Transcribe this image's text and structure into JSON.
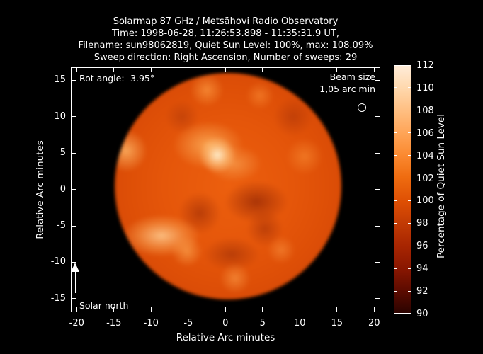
{
  "header": {
    "lines": [
      "Solarmap 87 GHz / Metsähovi Radio Observatory",
      "Time: 1998-06-28, 11:26:53.898 - 11:35:31.9 UT,",
      "Filename: sun98062819, Quiet Sun Level: 100%, max: 108.09%",
      "Sweep direction: Right Ascension, Number of sweeps: 29"
    ]
  },
  "plot": {
    "annotations": {
      "rot_angle": "Rot angle: -3.95°",
      "beam_size_line1": "Beam size",
      "beam_size_line2": "1,05 arc min",
      "solar_north": "Solar north"
    },
    "x_axis": {
      "label": "Relative Arc minutes"
    },
    "y_axis": {
      "label": "Relative Arc minutes"
    }
  },
  "colorbar": {
    "label": "Percentage of Quiet Sun Level"
  },
  "chart_data": {
    "type": "heatmap",
    "title": "Solarmap 87 GHz / Metsähovi Radio Observatory",
    "subtitle_lines": [
      "Time: 1998-06-28, 11:26:53.898 - 11:35:31.9 UT,",
      "Filename: sun98062819, Quiet Sun Level: 100%, max: 108.09%",
      "Sweep direction: Right Ascension, Number of sweeps: 29"
    ],
    "xlabel": "Relative Arc minutes",
    "ylabel": "Relative Arc minutes",
    "xlim": [
      -20.8,
      20.9
    ],
    "ylim": [
      -16.8,
      16.8
    ],
    "x_ticks": [
      -20,
      -15,
      -10,
      -5,
      0,
      5,
      10,
      15,
      20
    ],
    "y_ticks": [
      15,
      10,
      5,
      0,
      -5,
      -10,
      -15
    ],
    "grid": false,
    "background_color": "#000000",
    "colorbar": {
      "label": "Percentage of Quiet Sun Level",
      "range": [
        90,
        112
      ],
      "ticks": [
        112,
        110,
        108,
        106,
        104,
        102,
        100,
        98,
        96,
        94,
        92,
        90
      ],
      "colors_low_to_high": [
        "#2b0300",
        "#8a1701",
        "#c13a04",
        "#de4f04",
        "#fb8a31",
        "#ffbf82",
        "#ffecd8"
      ]
    },
    "solar_disk": {
      "center_arcmin": [
        0.3,
        0.4
      ],
      "radius_arcmin": 15.3,
      "quiet_sun_level_pct": 100,
      "max_pct": 108.09,
      "rot_angle_deg": -3.95,
      "beam_size_arcmin": "1,05",
      "typical_disk_pct": 100,
      "bright_regions_arcmin": [
        {
          "x": -1.5,
          "y": 4.8,
          "pct": 108
        },
        {
          "x": -13.6,
          "y": 5.4,
          "pct": 105
        },
        {
          "x": -8.6,
          "y": -6.3,
          "pct": 106
        },
        {
          "x": -2.7,
          "y": 13.9,
          "pct": 104
        },
        {
          "x": 1.1,
          "y": -12.1,
          "pct": 103
        },
        {
          "x": -5.2,
          "y": 1.5,
          "pct": 104
        }
      ],
      "dark_regions_arcmin": [
        {
          "x": 4.0,
          "y": -2.2,
          "pct": 96
        },
        {
          "x": -3.7,
          "y": -3.2,
          "pct": 97
        },
        {
          "x": 2.1,
          "y": 0.5,
          "pct": 97
        }
      ]
    }
  }
}
